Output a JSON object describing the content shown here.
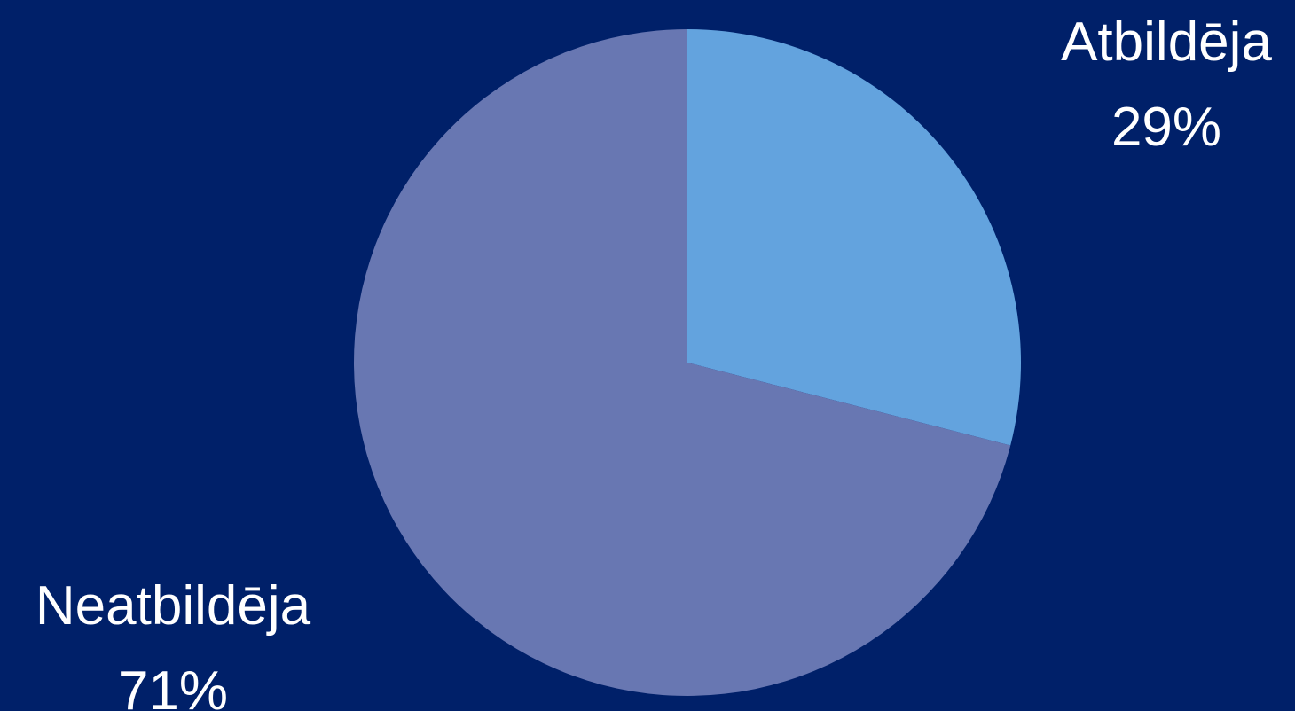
{
  "chart_data": {
    "type": "pie",
    "title": "",
    "categories": [
      "Atbildēja",
      "Neatbildēja"
    ],
    "values": [
      29,
      71
    ],
    "labels": [
      {
        "name": "Atbildēja",
        "percent": "29%"
      },
      {
        "name": "Neatbildēja",
        "percent": "71%"
      }
    ],
    "colors": [
      "#63a3de",
      "#6877b2"
    ],
    "background": "#002069",
    "legend": "none"
  }
}
